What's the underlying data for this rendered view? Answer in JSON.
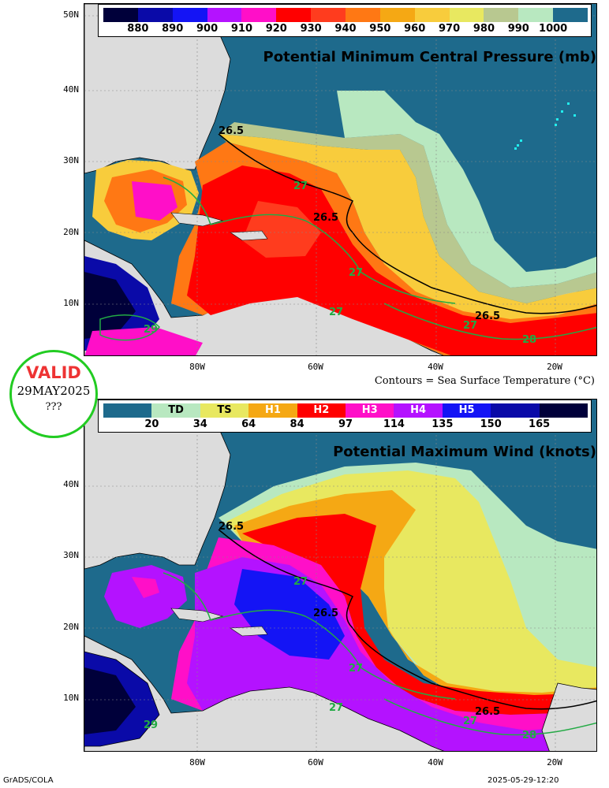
{
  "panel1": {
    "title": "Potential Minimum Central Pressure (mb)",
    "legend": {
      "colors": [
        "#00003a",
        "#0a0aa8",
        "#1414f5",
        "#b412ff",
        "#ff0fc8",
        "#ff0000",
        "#ff3c1e",
        "#ff7814",
        "#f5a814",
        "#f8cc3c",
        "#e8e860",
        "#b8c890",
        "#b8e8c0",
        "#1e6a8c"
      ],
      "labels": [
        "880",
        "890",
        "900",
        "910",
        "920",
        "930",
        "940",
        "950",
        "960",
        "970",
        "980",
        "990",
        "1000"
      ]
    },
    "contours": [
      "26.5",
      "26.5",
      "26.5",
      "27",
      "27",
      "27",
      "27",
      "28",
      "29"
    ]
  },
  "panel2": {
    "title": "Potential Maximum Wind (knots)",
    "legend": {
      "colors": [
        "#1e6a8c",
        "#b8e8c0",
        "#e8e860",
        "#f5a814",
        "#ff0000",
        "#ff0fc8",
        "#b412ff",
        "#1414f5",
        "#0a0aa8",
        "#00003a"
      ],
      "categories": [
        "",
        "TD",
        "TS",
        "H1",
        "H2",
        "H3",
        "H4",
        "H5",
        "",
        ""
      ],
      "labels": [
        "20",
        "34",
        "64",
        "84",
        "97",
        "114",
        "135",
        "150",
        "165"
      ]
    },
    "contours": [
      "26.5",
      "26.5",
      "26.5",
      "27",
      "27",
      "27",
      "27",
      "28",
      "29"
    ]
  },
  "axes": {
    "lat_labels": [
      "50N",
      "40N",
      "30N",
      "20N",
      "10N"
    ],
    "lon_labels": [
      "80W",
      "60W",
      "40W",
      "20W"
    ]
  },
  "contours_note": "Contours = Sea Surface Temperature (°C)",
  "valid": {
    "word": "VALID",
    "date": "29MAY2025",
    "extra": "???"
  },
  "credit": "GrADS/COLA",
  "timestamp": "2025-05-29-12:20"
}
